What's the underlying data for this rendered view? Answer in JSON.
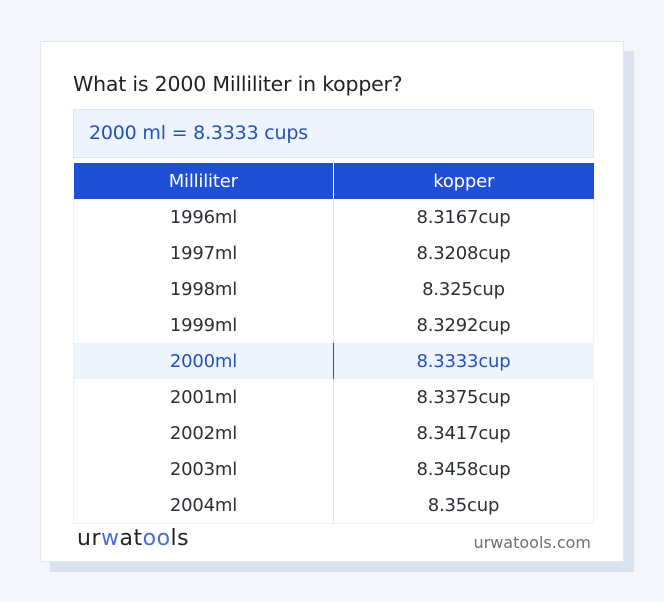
{
  "title": "What is 2000 Milliliter in kopper?",
  "result": "2000 ml = 8.3333 cups",
  "table": {
    "headers": [
      "Milliliter",
      "kopper"
    ],
    "rows": [
      {
        "ml": "1996ml",
        "cup": "8.3167cup"
      },
      {
        "ml": "1997ml",
        "cup": "8.3208cup"
      },
      {
        "ml": "1998ml",
        "cup": "8.325cup"
      },
      {
        "ml": "1999ml",
        "cup": "8.3292cup"
      },
      {
        "ml": "2000ml",
        "cup": "8.3333cup",
        "highlighted": true
      },
      {
        "ml": "2001ml",
        "cup": "8.3375cup"
      },
      {
        "ml": "2002ml",
        "cup": "8.3417cup"
      },
      {
        "ml": "2003ml",
        "cup": "8.3458cup"
      },
      {
        "ml": "2004ml",
        "cup": "8.35cup"
      }
    ]
  },
  "footer": {
    "logo": {
      "part1": "ur",
      "part2": "w",
      "part3": "at",
      "part4": "oo",
      "part5": "ls"
    },
    "site": "urwatools.com"
  },
  "colors": {
    "accent": "#1f4fd4",
    "highlight_bg": "#edf4fd",
    "highlight_text": "#2452b8"
  }
}
